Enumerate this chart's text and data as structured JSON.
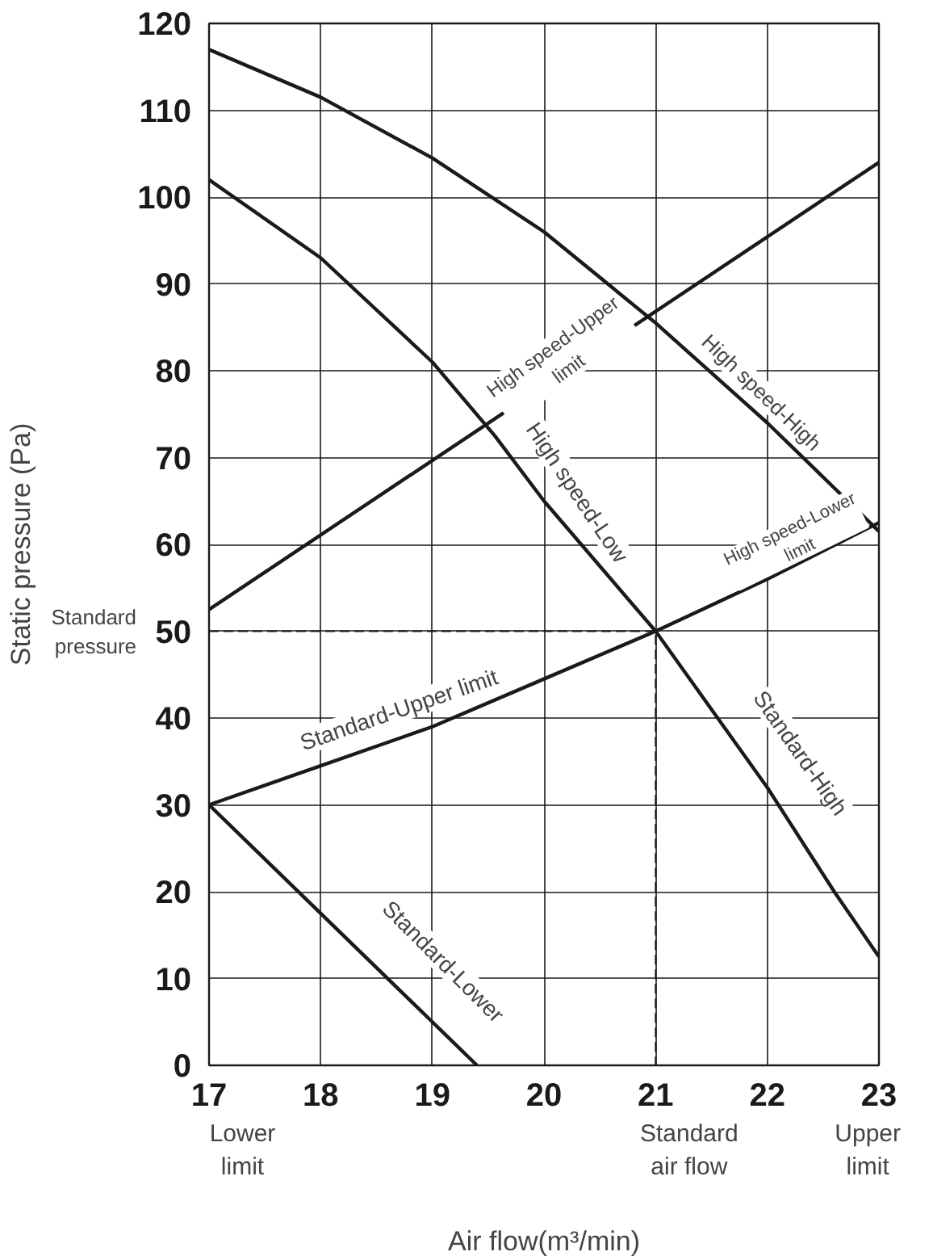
{
  "chart_data": {
    "type": "line",
    "xlabel": "Air flow(m³/min)",
    "ylabel": "Static pressure (Pa)",
    "xlim": [
      17,
      23
    ],
    "ylim": [
      0,
      120
    ],
    "xticks": [
      17,
      18,
      19,
      20,
      21,
      22,
      23
    ],
    "yticks": [
      0,
      10,
      20,
      30,
      40,
      50,
      60,
      70,
      80,
      90,
      100,
      110,
      120
    ],
    "grid": true,
    "marker": "none",
    "series": [
      {
        "color": "#1a1a1a",
        "x": [
          17,
          18,
          19,
          20,
          21,
          22,
          23
        ],
        "values": [
          117,
          111.5,
          104.5,
          96,
          85.5,
          74,
          61.5
        ]
      },
      {
        "color": "#1a1a1a",
        "x": [
          17,
          18,
          19,
          19.56,
          20,
          21,
          22,
          22.6,
          23
        ],
        "values": [
          102,
          93,
          81,
          72.5,
          65,
          50,
          32,
          20,
          12.5
        ]
      },
      {
        "color": "#1a1a1a",
        "x": [
          17,
          23
        ],
        "values": [
          52.5,
          104
        ]
      },
      {
        "color": "#1a1a1a",
        "x": [
          17,
          18,
          19,
          20,
          21,
          22,
          23
        ],
        "values": [
          30,
          34.5,
          39,
          44.5,
          50,
          56,
          62.5
        ]
      },
      {
        "color": "#1a1a1a",
        "x": [
          17,
          18,
          19,
          19.4
        ],
        "values": [
          30,
          17.5,
          5,
          0
        ]
      },
      {
        "color": "#1a1a1a",
        "x": [
          17,
          21,
          21
        ],
        "values": [
          50,
          50,
          0
        ],
        "line_style": "dashed"
      }
    ],
    "annotations": [
      "High speed-Upper\nlimit",
      "High speed-High",
      "High speed-Low",
      "High speed-Lower\nlimit",
      "Standard-Upper limit",
      "Standard-High",
      "Standard-Lower",
      "Standard\npressure",
      "Lower\nlimit",
      "Standard\nair flow",
      "Upper\nlimit"
    ]
  }
}
